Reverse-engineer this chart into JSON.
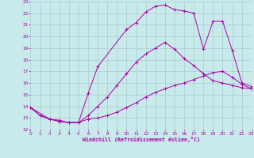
{
  "xlabel": "Windchill (Refroidissement éolien,°C)",
  "bg_color": "#c8eaea",
  "grid_color": "#aacccc",
  "line_color": "#aa00aa",
  "xlim": [
    0,
    23
  ],
  "ylim": [
    12,
    23
  ],
  "xticks": [
    0,
    1,
    2,
    3,
    4,
    5,
    6,
    7,
    8,
    9,
    10,
    11,
    12,
    13,
    14,
    15,
    16,
    17,
    18,
    19,
    20,
    21,
    22,
    23
  ],
  "yticks": [
    12,
    13,
    14,
    15,
    16,
    17,
    18,
    19,
    20,
    21,
    22,
    23
  ],
  "curve1_x": [
    0,
    1,
    2,
    3,
    4,
    5,
    6,
    7,
    8,
    9,
    10,
    11,
    12,
    13,
    14,
    15,
    16,
    17,
    18,
    19,
    20,
    21,
    22,
    23
  ],
  "curve1_y": [
    13.9,
    13.2,
    12.9,
    12.7,
    12.6,
    12.6,
    12.9,
    13.0,
    13.2,
    13.5,
    13.9,
    14.3,
    14.8,
    15.2,
    15.5,
    15.8,
    16.0,
    16.3,
    16.6,
    16.9,
    17.0,
    16.5,
    15.9,
    15.5
  ],
  "curve2_x": [
    0,
    1,
    2,
    3,
    4,
    5,
    6,
    7,
    8,
    9,
    10,
    11,
    12,
    13,
    14,
    15,
    16,
    17,
    18,
    19,
    20,
    21,
    22,
    23
  ],
  "curve2_y": [
    13.9,
    13.2,
    12.9,
    12.7,
    12.6,
    12.6,
    13.2,
    14.0,
    14.8,
    15.8,
    16.8,
    17.8,
    18.5,
    19.0,
    19.5,
    18.9,
    18.1,
    17.5,
    16.8,
    16.2,
    16.0,
    15.8,
    15.6,
    15.5
  ],
  "curve3_x": [
    0,
    2,
    3,
    4,
    5,
    6,
    7,
    10,
    11,
    12,
    13,
    14,
    15,
    16,
    17,
    18,
    19,
    20,
    21,
    22,
    23
  ],
  "curve3_y": [
    13.9,
    12.9,
    12.8,
    12.6,
    12.6,
    15.1,
    17.4,
    20.6,
    21.2,
    22.1,
    22.6,
    22.7,
    22.3,
    22.2,
    22.0,
    18.9,
    21.3,
    21.3,
    18.8,
    16.0,
    15.7
  ]
}
